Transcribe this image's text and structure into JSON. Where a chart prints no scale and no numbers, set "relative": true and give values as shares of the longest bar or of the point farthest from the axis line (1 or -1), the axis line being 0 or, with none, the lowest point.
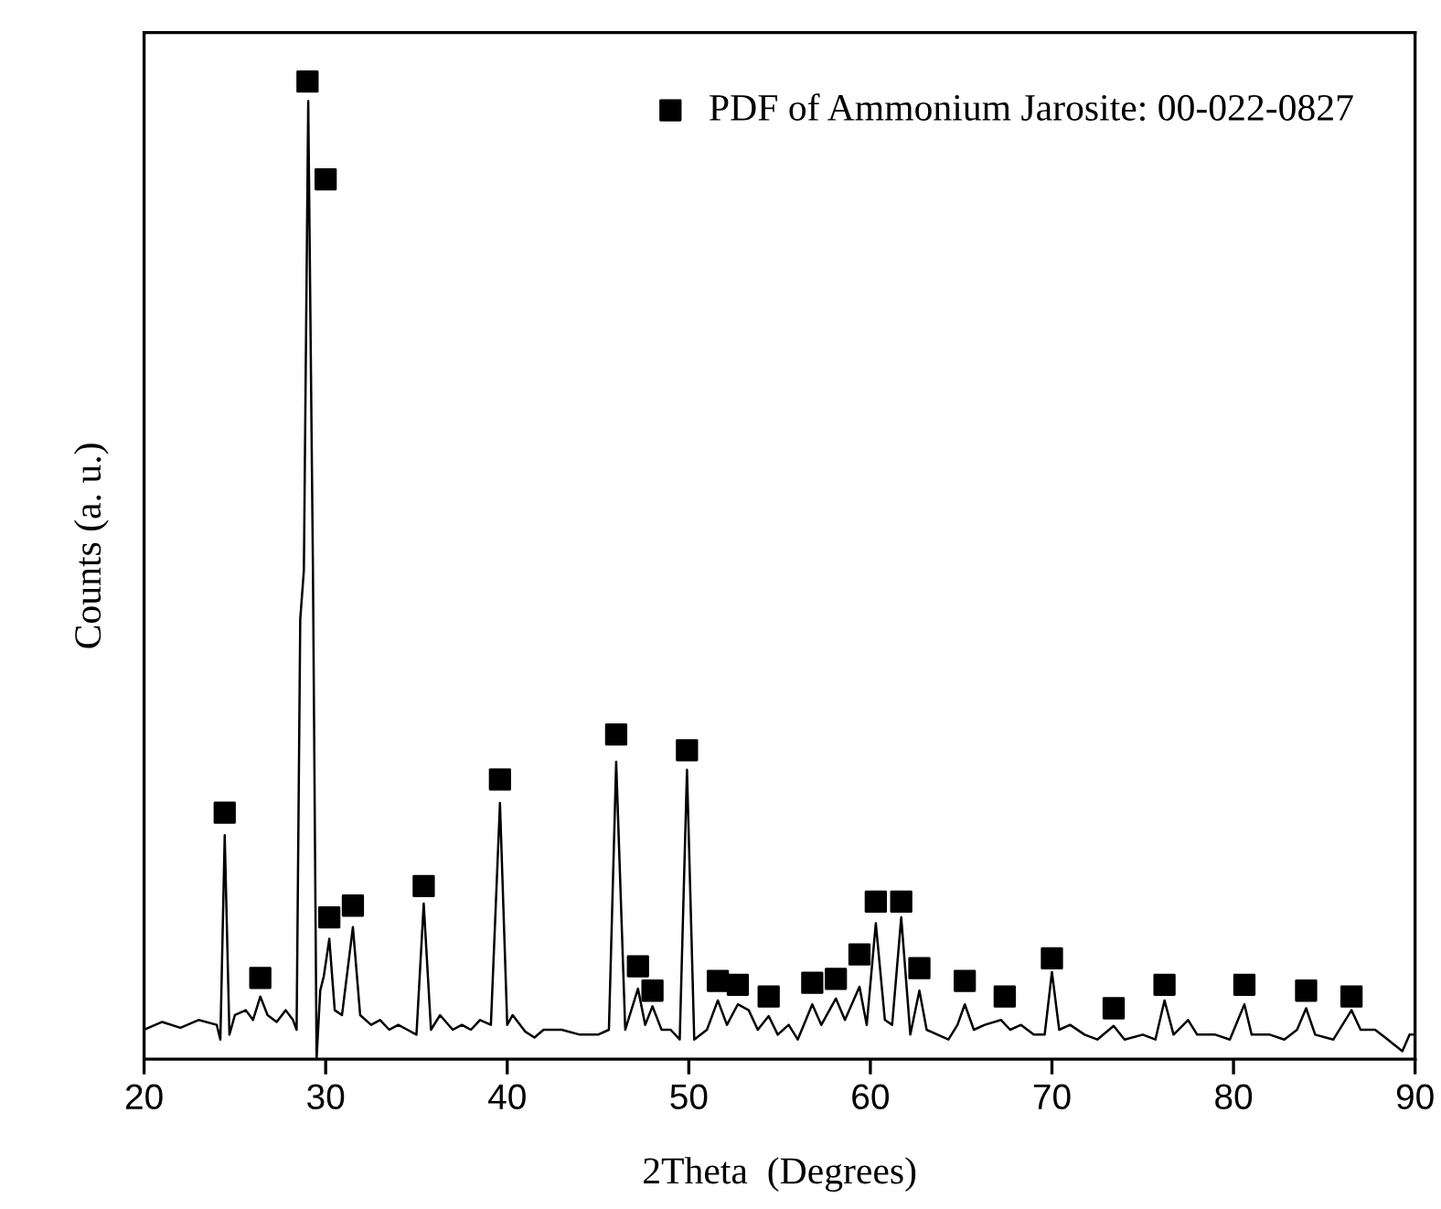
{
  "chart_data": {
    "type": "line",
    "relative": true,
    "xlabel": "2Theta  (Degrees)",
    "ylabel": "Counts (a. u.)",
    "xlim": [
      20,
      90
    ],
    "xticks": [
      20,
      30,
      40,
      50,
      60,
      70,
      80,
      90
    ],
    "tick_labels": "x",
    "legend": "top right",
    "grid": false,
    "series": [
      {
        "color": "#000000",
        "marker": "none",
        "line_style": "solid",
        "x": [
          20.0,
          21,
          22,
          23,
          24.0,
          24.2,
          24.44,
          24.7,
          25.0,
          25.6,
          26.0,
          26.4,
          26.8,
          27.3,
          27.8,
          28.2,
          28.4,
          28.6,
          28.8,
          29.04,
          29.3,
          29.5,
          29.7,
          29.9,
          30.2,
          30.5,
          30.9,
          31.5,
          31.9,
          32.5,
          33.0,
          33.5,
          34,
          34.5,
          35.0,
          35.4,
          35.8,
          36.3,
          37,
          37.5,
          38,
          38.5,
          39.1,
          39.6,
          40.0,
          40.3,
          41,
          41.5,
          42,
          43,
          44,
          45,
          45.6,
          46.0,
          46.5,
          47.2,
          47.6,
          48.0,
          48.5,
          49.0,
          49.5,
          49.9,
          50.3,
          51,
          51.6,
          52.1,
          52.7,
          53.3,
          53.8,
          54.4,
          54.9,
          55.5,
          56.0,
          56.8,
          57.3,
          58.1,
          58.6,
          59.4,
          59.8,
          60.3,
          60.8,
          61.2,
          61.7,
          62.2,
          62.7,
          63.1,
          63.7,
          64.3,
          64.8,
          65.2,
          65.7,
          66.3,
          67.2,
          67.7,
          68.3,
          69,
          69.6,
          70.0,
          70.4,
          71,
          71.8,
          72.5,
          73.4,
          74,
          75,
          75.7,
          76.2,
          76.7,
          77.5,
          78,
          79,
          79.8,
          80.6,
          81,
          82,
          82.8,
          83.5,
          84.0,
          84.5,
          85.5,
          86.5,
          87,
          87.8,
          88.5,
          89.3,
          89.7,
          90
        ],
        "values": [
          0.03,
          0.038,
          0.032,
          0.04,
          0.035,
          0.02,
          0.229,
          0.025,
          0.045,
          0.05,
          0.04,
          0.064,
          0.045,
          0.038,
          0.05,
          0.04,
          0.03,
          0.45,
          0.5,
          0.98,
          0.5,
          0.0,
          0.07,
          0.085,
          0.123,
          0.05,
          0.045,
          0.135,
          0.045,
          0.035,
          0.04,
          0.03,
          0.035,
          0.03,
          0.025,
          0.159,
          0.03,
          0.045,
          0.03,
          0.035,
          0.03,
          0.04,
          0.035,
          0.262,
          0.035,
          0.045,
          0.028,
          0.022,
          0.03,
          0.03,
          0.025,
          0.025,
          0.03,
          0.304,
          0.03,
          0.072,
          0.035,
          0.054,
          0.03,
          0.03,
          0.02,
          0.296,
          0.02,
          0.03,
          0.06,
          0.035,
          0.056,
          0.05,
          0.03,
          0.044,
          0.025,
          0.035,
          0.02,
          0.056,
          0.035,
          0.062,
          0.04,
          0.074,
          0.035,
          0.139,
          0.04,
          0.035,
          0.145,
          0.025,
          0.07,
          0.03,
          0.025,
          0.02,
          0.035,
          0.056,
          0.03,
          0.035,
          0.04,
          0.03,
          0.035,
          0.025,
          0.025,
          0.089,
          0.03,
          0.035,
          0.025,
          0.02,
          0.034,
          0.02,
          0.025,
          0.02,
          0.06,
          0.025,
          0.04,
          0.025,
          0.025,
          0.02,
          0.056,
          0.025,
          0.025,
          0.02,
          0.03,
          0.052,
          0.025,
          0.02,
          0.05,
          0.03,
          0.03,
          0.02,
          0.008,
          0.025,
          0.025
        ]
      },
      {
        "type": "scatter",
        "name": "PDF of Ammonium Jarosite: 00-022-0827",
        "color": "#000000",
        "marker": "square",
        "x": [
          24.44,
          26.4,
          29.0,
          30.0,
          30.2,
          31.5,
          35.4,
          39.6,
          46.0,
          47.2,
          48.0,
          49.9,
          51.6,
          52.7,
          54.4,
          56.8,
          58.1,
          59.4,
          60.3,
          61.7,
          62.7,
          65.2,
          67.4,
          70.0,
          73.4,
          76.2,
          80.6,
          84.0,
          86.5
        ],
        "values": [
          0.252,
          0.083,
          1.0,
          0.9,
          0.145,
          0.157,
          0.177,
          0.286,
          0.332,
          0.095,
          0.07,
          0.316,
          0.08,
          0.076,
          0.064,
          0.078,
          0.082,
          0.107,
          0.161,
          0.161,
          0.093,
          0.08,
          0.064,
          0.103,
          0.052,
          0.076,
          0.076,
          0.07,
          0.064
        ]
      }
    ]
  }
}
